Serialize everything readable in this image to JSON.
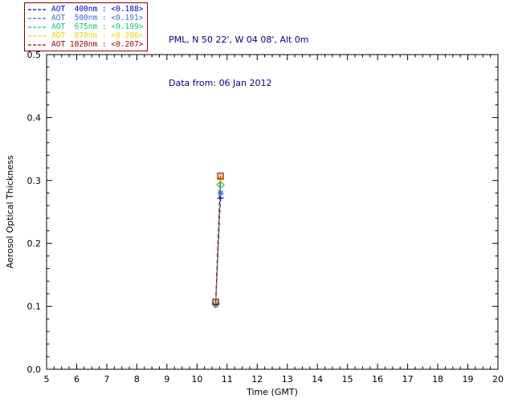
{
  "header": {
    "station_line": "PML, N 50 22', W 04 08', Alt 0m",
    "date_line": "Data from: 06 Jan 2012"
  },
  "legend": {
    "separator": " : ",
    "border_color": "#800000"
  },
  "chart_data": {
    "type": "line",
    "title": "",
    "xlabel": "Time (GMT)",
    "ylabel": "Aerosol Optical Thickness",
    "xlim": [
      5,
      20
    ],
    "ylim": [
      0.0,
      0.5
    ],
    "xticks": [
      5,
      6,
      7,
      8,
      9,
      10,
      11,
      12,
      13,
      14,
      15,
      16,
      17,
      18,
      19,
      20
    ],
    "yticks": [
      0.0,
      0.1,
      0.2,
      0.3,
      0.4,
      0.5
    ],
    "grid": false,
    "legend_position": "top-left",
    "x": [
      10.62,
      10.78
    ],
    "series": [
      {
        "name": "AOT  400nm",
        "mean_label": "<0.188>",
        "color": "#0000DD",
        "marker": "plus",
        "values": [
          0.104,
          0.272
        ]
      },
      {
        "name": "AOT  500nm",
        "mean_label": "<0.191>",
        "color": "#4169E1",
        "marker": "asterisk",
        "values": [
          0.102,
          0.28
        ]
      },
      {
        "name": "AOT  675nm",
        "mean_label": "<0.199>",
        "color": "#00CC77",
        "marker": "diamond",
        "values": [
          0.105,
          0.293
        ]
      },
      {
        "name": "AOT  870nm",
        "mean_label": "<0.206>",
        "color": "#EED400",
        "marker": "triangle",
        "values": [
          0.107,
          0.305
        ]
      },
      {
        "name": "AOT 1020nm",
        "mean_label": "<0.207>",
        "color": "#A00000",
        "marker": "square",
        "values": [
          0.107,
          0.307
        ]
      }
    ]
  }
}
